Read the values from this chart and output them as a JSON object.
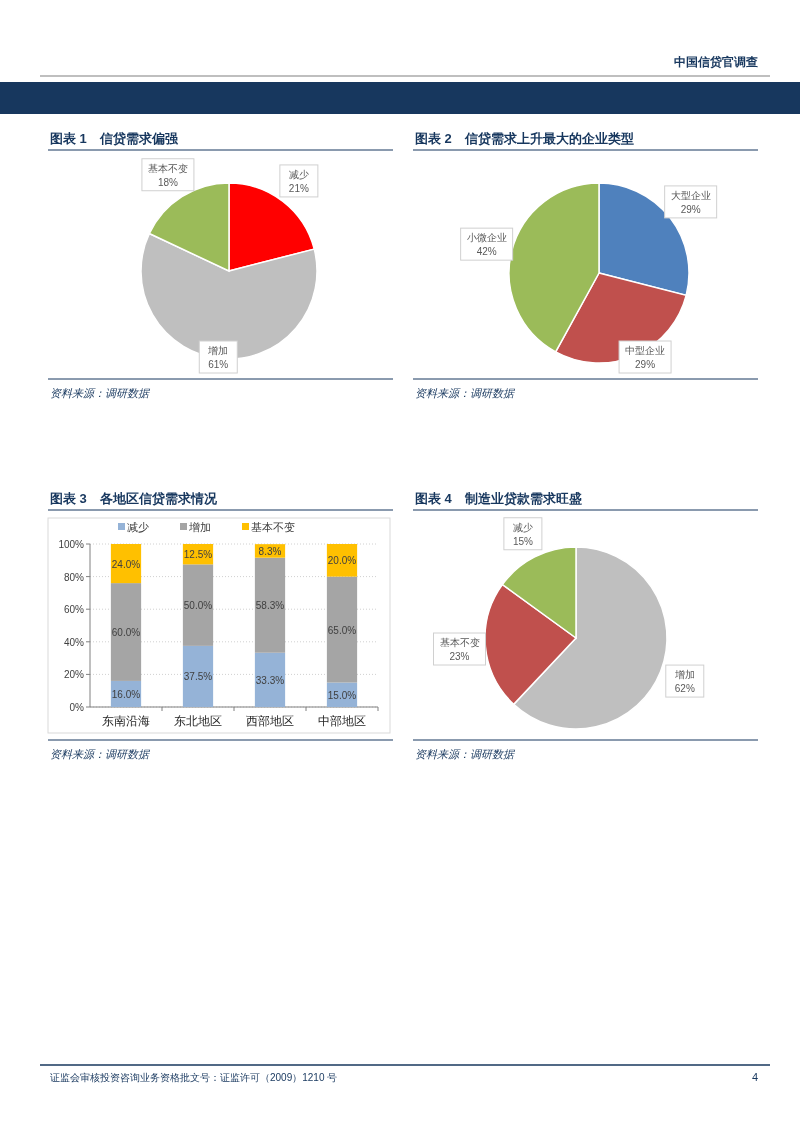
{
  "chart_data": [
    {
      "type": "pie",
      "title": "图表 1　信贷需求偏强",
      "categories": [
        "减少",
        "增加",
        "基本不变"
      ],
      "values": [
        21,
        61,
        18
      ],
      "colors": [
        "#ff0000",
        "#bfbfbf",
        "#9bbb59"
      ],
      "value_labels": [
        "21%",
        "61%",
        "18%"
      ],
      "annotations": [
        "资料来源：调研数据",
        "中国信贷官调查",
        "证监会审核投资咨询业务资格批文号：证监许可（2009）1210 号",
        "4"
      ]
    },
    {
      "type": "pie",
      "title": "图表 2　信贷需求上升最大的企业类型",
      "categories": [
        "大型企业",
        "中型企业",
        "小微企业"
      ],
      "values": [
        29,
        29,
        42
      ],
      "colors": [
        "#4f81bd",
        "#c0504d",
        "#9bbb59"
      ],
      "value_labels": [
        "29%",
        "29%",
        "42%"
      ],
      "annotations": [
        "资料来源：调研数据"
      ]
    },
    {
      "type": "bar",
      "title": "图表 3　各地区信贷需求情况",
      "categories": [
        "东南沿海",
        "东北地区",
        "西部地区",
        "中部地区"
      ],
      "stacked": true,
      "series": [
        {
          "name": "减少",
          "color": "#95b3d7",
          "values": [
            16.0,
            37.5,
            33.3,
            15.0
          ],
          "value_labels": [
            "16.0%",
            "37.5%",
            "33.3%",
            "15.0%"
          ]
        },
        {
          "name": "增加",
          "color": "#a5a5a5",
          "values": [
            60.0,
            50.0,
            58.3,
            65.0
          ],
          "value_labels": [
            "60.0%",
            "50.0%",
            "58.3%",
            "65.0%"
          ]
        },
        {
          "name": "基本不变",
          "color": "#ffc000",
          "values": [
            24.0,
            12.5,
            8.3,
            20.0
          ],
          "value_labels": [
            "24.0%",
            "12.5%",
            "8.3%",
            "20.0%"
          ]
        }
      ],
      "ylim": [
        0,
        100
      ],
      "yticks": [
        {
          "value": 0,
          "label": "0%"
        },
        {
          "value": 20,
          "label": "20%"
        },
        {
          "value": 40,
          "label": "40%"
        },
        {
          "value": 60,
          "label": "60%"
        },
        {
          "value": 80,
          "label": "80%"
        },
        {
          "value": 100,
          "label": "100%"
        }
      ],
      "grid": "y",
      "legend": "top",
      "annotations": [
        "资料来源：调研数据"
      ]
    },
    {
      "type": "pie",
      "title": "图表 4　制造业贷款需求旺盛",
      "categories": [
        "增加",
        "基本不变",
        "减少"
      ],
      "values": [
        62,
        23,
        15
      ],
      "colors": [
        "#bfbfbf",
        "#c0504d",
        "#9bbb59"
      ],
      "value_labels": [
        "62%",
        "23%",
        "15%"
      ],
      "annotations": [
        "资料来源：调研数据"
      ]
    }
  ]
}
